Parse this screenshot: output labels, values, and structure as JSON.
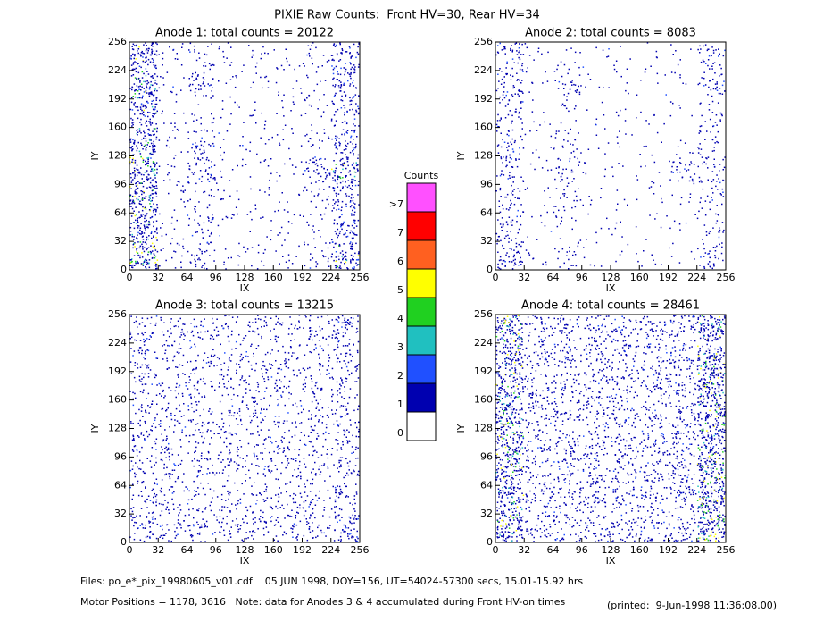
{
  "title": "PIXIE Raw Counts:  Front HV=30, Rear HV=34",
  "chart_data": [
    {
      "type": "heatmap",
      "title": "Anode 1: total counts = 20122",
      "xlabel": "IX",
      "ylabel": "IY",
      "xlim": [
        0,
        256
      ],
      "ylim": [
        0,
        256
      ],
      "xticks": [
        0,
        32,
        64,
        96,
        128,
        160,
        192,
        224,
        256
      ],
      "yticks": [
        0,
        32,
        64,
        96,
        128,
        160,
        192,
        224,
        256
      ],
      "z": [
        [
          0.9,
          0.15,
          0.3,
          0.1,
          0.1,
          0.1,
          0.2,
          0.7
        ],
        [
          0.8,
          0.1,
          0.25,
          0.08,
          0.08,
          0.08,
          0.12,
          0.5
        ],
        [
          0.9,
          0.1,
          0.15,
          0.08,
          0.08,
          0.08,
          0.15,
          0.5
        ],
        [
          0.9,
          0.1,
          0.4,
          0.08,
          0.08,
          0.08,
          0.4,
          0.7
        ],
        [
          0.8,
          0.1,
          0.3,
          0.08,
          0.08,
          0.08,
          0.15,
          0.5
        ],
        [
          0.7,
          0.1,
          0.1,
          0.08,
          0.08,
          0.08,
          0.1,
          0.4
        ],
        [
          0.8,
          0.1,
          0.35,
          0.08,
          0.08,
          0.08,
          0.1,
          0.5
        ],
        [
          0.8,
          0.12,
          0.2,
          0.1,
          0.1,
          0.1,
          0.15,
          0.5
        ]
      ]
    },
    {
      "type": "heatmap",
      "title": "Anode 2: total counts = 8083",
      "xlabel": "IX",
      "ylabel": "IY",
      "xlim": [
        0,
        256
      ],
      "ylim": [
        0,
        256
      ],
      "xticks": [
        0,
        32,
        64,
        96,
        128,
        160,
        192,
        224,
        256
      ],
      "yticks": [
        0,
        32,
        64,
        96,
        128,
        160,
        192,
        224,
        256
      ],
      "z": [
        [
          0.5,
          0.08,
          0.2,
          0.05,
          0.05,
          0.05,
          0.05,
          0.3
        ],
        [
          0.3,
          0.06,
          0.1,
          0.05,
          0.05,
          0.05,
          0.05,
          0.2
        ],
        [
          0.3,
          0.06,
          0.2,
          0.05,
          0.05,
          0.05,
          0.05,
          0.2
        ],
        [
          0.3,
          0.06,
          0.25,
          0.05,
          0.05,
          0.05,
          0.3,
          0.3
        ],
        [
          0.3,
          0.06,
          0.2,
          0.05,
          0.05,
          0.05,
          0.05,
          0.2
        ],
        [
          0.3,
          0.06,
          0.1,
          0.05,
          0.05,
          0.05,
          0.05,
          0.2
        ],
        [
          0.4,
          0.06,
          0.25,
          0.05,
          0.05,
          0.05,
          0.05,
          0.3
        ],
        [
          0.4,
          0.08,
          0.1,
          0.05,
          0.05,
          0.05,
          0.05,
          0.3
        ]
      ]
    },
    {
      "type": "heatmap",
      "title": "Anode 3: total counts = 13215",
      "xlabel": "IX",
      "ylabel": "IY",
      "xlim": [
        0,
        256
      ],
      "ylim": [
        0,
        256
      ],
      "xticks": [
        0,
        32,
        64,
        96,
        128,
        160,
        192,
        224,
        256
      ],
      "yticks": [
        0,
        32,
        64,
        96,
        128,
        160,
        192,
        224,
        256
      ],
      "z": [
        [
          0.4,
          0.3,
          0.3,
          0.3,
          0.3,
          0.3,
          0.3,
          0.5
        ],
        [
          0.3,
          0.25,
          0.25,
          0.25,
          0.25,
          0.25,
          0.25,
          0.35
        ],
        [
          0.3,
          0.25,
          0.25,
          0.25,
          0.25,
          0.25,
          0.25,
          0.3
        ],
        [
          0.3,
          0.25,
          0.25,
          0.25,
          0.25,
          0.25,
          0.25,
          0.3
        ],
        [
          0.3,
          0.25,
          0.25,
          0.25,
          0.25,
          0.25,
          0.25,
          0.3
        ],
        [
          0.3,
          0.25,
          0.25,
          0.25,
          0.25,
          0.25,
          0.25,
          0.3
        ],
        [
          0.3,
          0.25,
          0.25,
          0.25,
          0.25,
          0.25,
          0.25,
          0.35
        ],
        [
          0.35,
          0.25,
          0.25,
          0.25,
          0.25,
          0.25,
          0.3,
          0.5
        ]
      ]
    },
    {
      "type": "heatmap",
      "title": "Anode 4: total counts = 28461",
      "xlabel": "IX",
      "ylabel": "IY",
      "xlim": [
        0,
        256
      ],
      "ylim": [
        0,
        256
      ],
      "xticks": [
        0,
        32,
        64,
        96,
        128,
        160,
        192,
        224,
        256
      ],
      "yticks": [
        0,
        32,
        64,
        96,
        128,
        160,
        192,
        224,
        256
      ],
      "z": [
        [
          0.9,
          0.35,
          0.35,
          0.35,
          0.35,
          0.35,
          0.4,
          1.0
        ],
        [
          0.8,
          0.35,
          0.35,
          0.35,
          0.35,
          0.35,
          0.4,
          1.0
        ],
        [
          0.8,
          0.35,
          0.35,
          0.35,
          0.35,
          0.35,
          0.4,
          1.0
        ],
        [
          0.9,
          0.35,
          0.35,
          0.35,
          0.35,
          0.35,
          0.4,
          0.9
        ],
        [
          0.9,
          0.35,
          0.35,
          0.35,
          0.35,
          0.35,
          0.4,
          0.9
        ],
        [
          0.8,
          0.35,
          0.35,
          0.35,
          0.35,
          0.35,
          0.4,
          1.0
        ],
        [
          0.8,
          0.35,
          0.35,
          0.35,
          0.35,
          0.35,
          0.4,
          0.9
        ],
        [
          0.9,
          0.35,
          0.35,
          0.35,
          0.35,
          0.35,
          0.4,
          0.9
        ]
      ]
    }
  ],
  "colorbar": {
    "title": "Counts",
    "levels": [
      0,
      1,
      2,
      3,
      4,
      5,
      6,
      7,
      {
        "value": 8,
        "label": ">7"
      }
    ],
    "colors": [
      "#ffffff",
      "#0000b0",
      "#2050ff",
      "#20c0c0",
      "#20d020",
      "#ffff00",
      "#ff6020",
      "#ff0000",
      "#ff50ff"
    ]
  },
  "footer": {
    "files": "Files: po_e*_pix_19980605_v01.cdf    05 JUN 1998, DOY=156, UT=54024-57300 secs, 15.01-15.92 hrs",
    "motor": "Motor Positions = 1178, 3616   Note: data for Anodes 3 & 4 accumulated during Front HV-on times",
    "printed": "(printed:  9-Jun-1998 11:36:08.00)"
  }
}
